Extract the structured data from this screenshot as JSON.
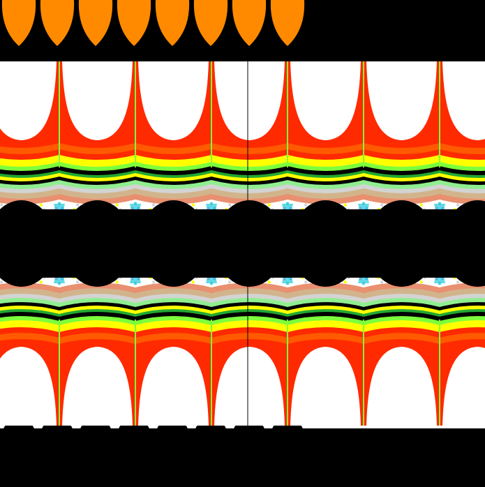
{
  "image": {
    "subject": "fractal-render",
    "period_count": 6,
    "colors": {
      "background": "#ffffff",
      "black": "#000000",
      "orange": "#ff8a00",
      "red": "#ff2a00",
      "orange_red": "#ff5a00",
      "yellow": "#ffff00",
      "lime": "#7dff3c",
      "green": "#22a832",
      "light_green": "#90ee90",
      "gray": "#d3d3d3",
      "tan": "#d2b48c",
      "salmon": "#e89070",
      "cyan": "#3bd0e0",
      "blue": "#2d6cff",
      "purple": "#a34bd9",
      "magenta": "#ff33cc"
    }
  }
}
